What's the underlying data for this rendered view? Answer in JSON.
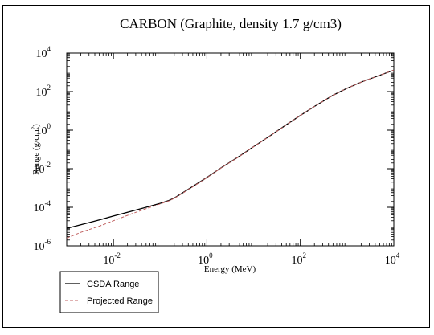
{
  "chart_data": {
    "type": "line",
    "title": "CARBON (Graphite, density 1.7 g/cm3)",
    "xlabel": "Energy (MeV)",
    "ylabel": {
      "text": "Range (g/cm",
      "sup": "2",
      "tail": ")"
    },
    "x_scale": "log",
    "y_scale": "log",
    "xlim": [
      0.001,
      10000
    ],
    "ylim": [
      1e-06,
      10000
    ],
    "x_ticks": [
      {
        "base": "10",
        "exp": "-2",
        "value": 0.01
      },
      {
        "base": "10",
        "exp": "0",
        "value": 1
      },
      {
        "base": "10",
        "exp": "2",
        "value": 100
      },
      {
        "base": "10",
        "exp": "4",
        "value": 10000
      }
    ],
    "y_ticks": [
      {
        "base": "10",
        "exp": "-6",
        "value": 1e-06
      },
      {
        "base": "10",
        "exp": "-4",
        "value": 0.0001
      },
      {
        "base": "10",
        "exp": "-2",
        "value": 0.01
      },
      {
        "base": "10",
        "exp": "0",
        "value": 1
      },
      {
        "base": "10",
        "exp": "2",
        "value": 100
      },
      {
        "base": "10",
        "exp": "4",
        "value": 10000
      }
    ],
    "legend_position": "bottom-left, below plot",
    "grid": false,
    "series": [
      {
        "name": "CSDA Range",
        "color": "#000000",
        "style": "solid",
        "x": [
          0.001,
          0.002,
          0.005,
          0.01,
          0.02,
          0.05,
          0.1,
          0.15,
          0.2,
          0.3,
          0.5,
          1,
          2,
          5,
          10,
          20,
          50,
          100,
          200,
          500,
          1000,
          2000,
          5000,
          10000
        ],
        "y": [
          8e-06,
          1.25e-05,
          2.2e-05,
          3.5e-05,
          5.5e-05,
          0.0001,
          0.00016,
          0.00022,
          0.0003,
          0.00055,
          0.0012,
          0.0035,
          0.011,
          0.045,
          0.14,
          0.42,
          1.9,
          5.8,
          17,
          65,
          150,
          310,
          700,
          1300
        ]
      },
      {
        "name": "Projected Range",
        "color": "#c06060",
        "style": "dashed",
        "x": [
          0.001,
          0.002,
          0.005,
          0.01,
          0.02,
          0.05,
          0.1,
          0.15,
          0.2,
          0.3,
          0.5,
          1,
          2,
          5,
          10,
          20,
          50,
          100,
          200,
          500,
          1000,
          2000,
          5000,
          10000
        ],
        "y": [
          2.5e-06,
          5e-06,
          1.05e-05,
          2e-05,
          3.8e-05,
          8.5e-05,
          0.00015,
          0.00021,
          0.00029,
          0.00053,
          0.00115,
          0.0034,
          0.0108,
          0.044,
          0.138,
          0.415,
          1.89,
          5.78,
          17,
          65,
          150,
          310,
          700,
          1300
        ]
      }
    ]
  }
}
